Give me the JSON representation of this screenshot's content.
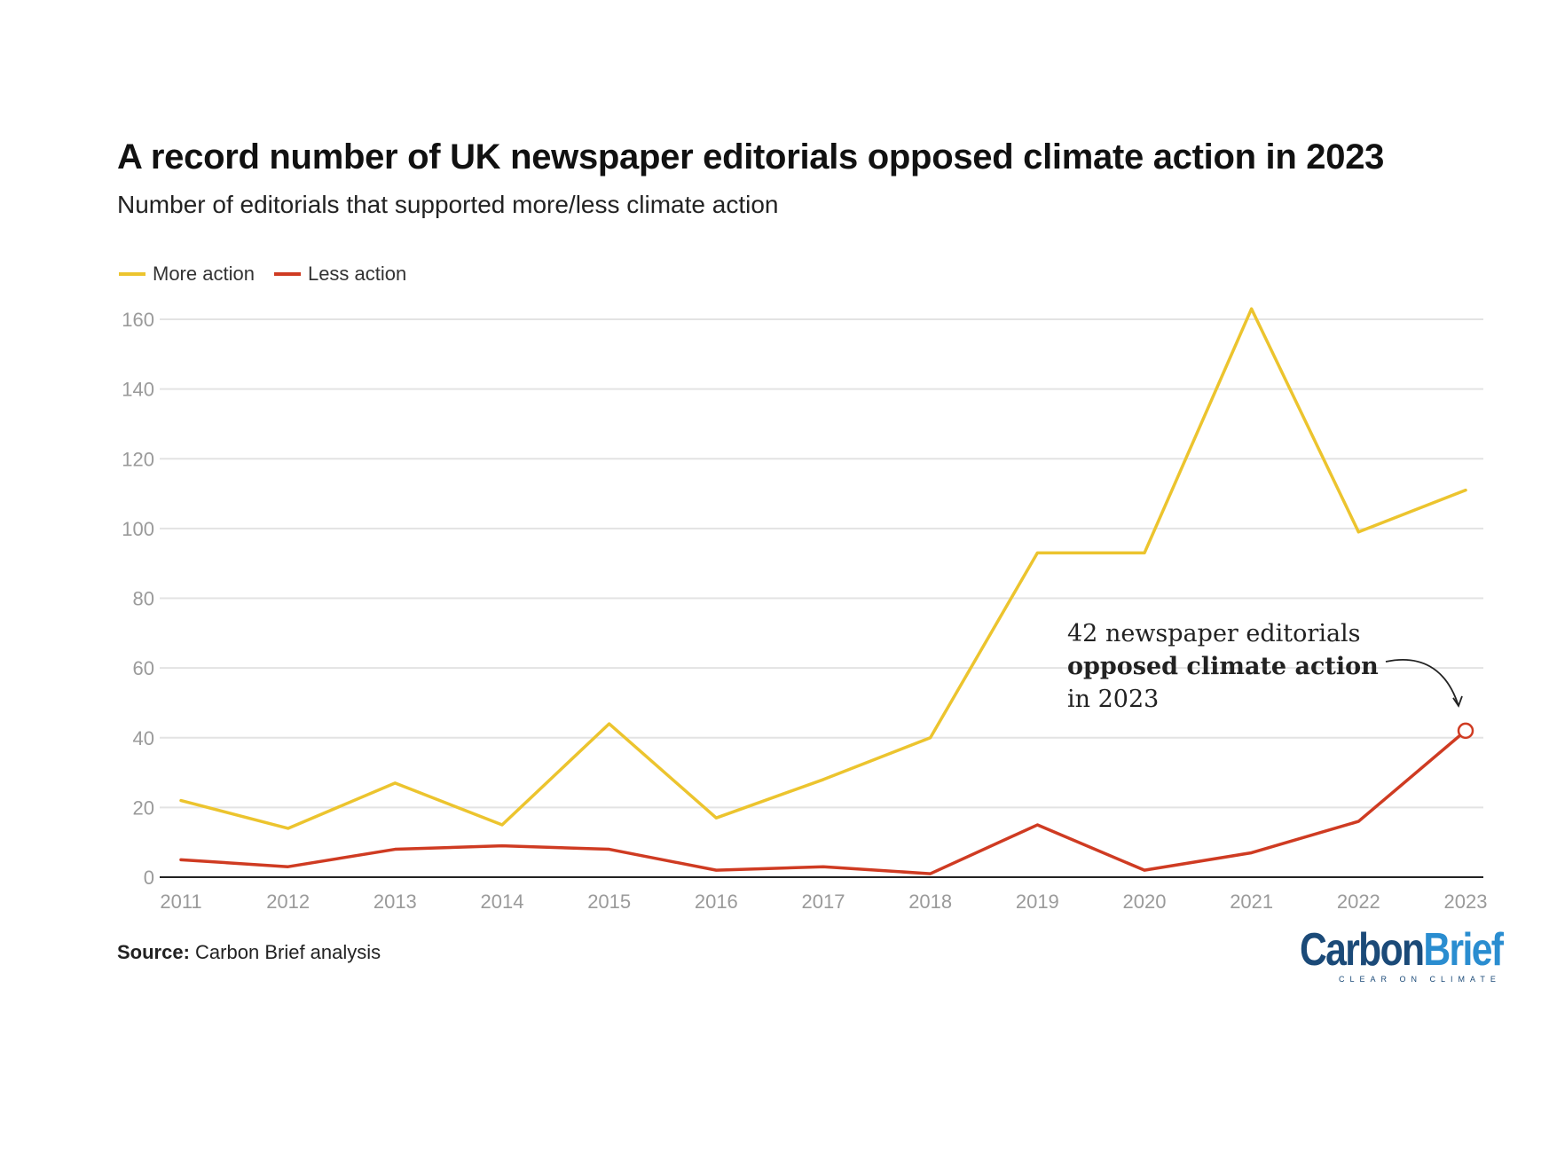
{
  "title": "A record number of UK newspaper editorials opposed climate action in 2023",
  "subtitle": "Number of editorials that supported more/less climate action",
  "colors": {
    "more": "#ecc42e",
    "less": "#cf3b22",
    "grid": "#e3e3e3",
    "axis": "#222222",
    "tick": "#9a9a9a"
  },
  "legend": [
    {
      "label": "More action",
      "color": "#ecc42e"
    },
    {
      "label": "Less action",
      "color": "#cf3b22"
    }
  ],
  "annotation": {
    "line1": "42 newspaper editorials",
    "line2": "opposed climate action",
    "line3": "in 2023"
  },
  "source": {
    "label": "Source:",
    "text": "Carbon Brief analysis"
  },
  "logo": {
    "part1": "Carbon",
    "part2": "Brief",
    "tagline": "CLEAR ON CLIMATE"
  },
  "chart_data": {
    "type": "line",
    "title": "A record number of UK newspaper editorials opposed climate action in 2023",
    "xlabel": "",
    "ylabel": "",
    "categories": [
      "2011",
      "2012",
      "2013",
      "2014",
      "2015",
      "2016",
      "2017",
      "2018",
      "2019",
      "2020",
      "2021",
      "2022",
      "2023"
    ],
    "yticks": [
      0,
      20,
      40,
      60,
      80,
      100,
      120,
      140,
      160
    ],
    "ylim": [
      0,
      160
    ],
    "grid": true,
    "legend_position": "top-left",
    "series": [
      {
        "name": "More action",
        "values": [
          22,
          14,
          27,
          15,
          44,
          17,
          28,
          40,
          93,
          93,
          163,
          99,
          111
        ]
      },
      {
        "name": "Less action",
        "values": [
          5,
          3,
          8,
          9,
          8,
          2,
          3,
          1,
          15,
          2,
          7,
          16,
          42
        ]
      }
    ],
    "highlight": {
      "series": "Less action",
      "category": "2023",
      "value": 42
    }
  }
}
